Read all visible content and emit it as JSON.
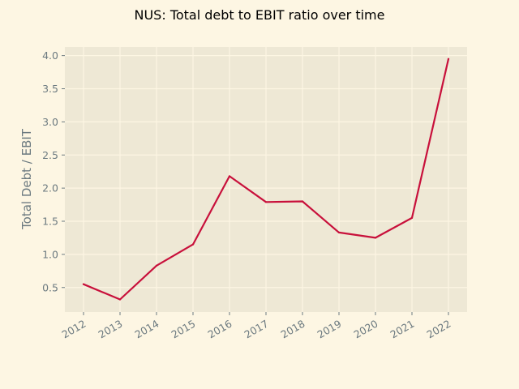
{
  "chart_data": {
    "type": "line",
    "title": "NUS: Total debt to EBIT ratio over time",
    "xlabel": "",
    "ylabel": "Total Debt / EBIT",
    "x": [
      "2012",
      "2013",
      "2014",
      "2015",
      "2016",
      "2017",
      "2018",
      "2019",
      "2020",
      "2021",
      "2022"
    ],
    "series": [
      {
        "values": [
          0.55,
          0.32,
          0.83,
          1.15,
          2.18,
          1.79,
          1.8,
          1.33,
          1.25,
          1.55,
          3.95
        ]
      }
    ],
    "ylim": [
      0.13,
      4.13
    ],
    "yticks": [
      0.5,
      1.0,
      1.5,
      2.0,
      2.5,
      3.0,
      3.5,
      4.0
    ],
    "grid": true,
    "colors": {
      "page_background": "#fdf6e3",
      "plot_background": "#eee8d5",
      "grid": "#fdf6e3",
      "line": "#c8103b",
      "tick_text": "#6c7a80",
      "title_text": "#000000"
    }
  }
}
